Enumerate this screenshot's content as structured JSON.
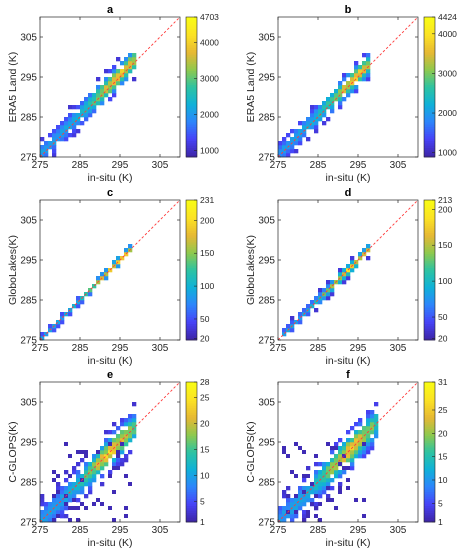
{
  "chart_data": [
    {
      "type": "heatmap",
      "title": "a",
      "xlabel": "in-situ (K)",
      "ylabel": "ERA5 Land (K)",
      "xlim": [
        275,
        310
      ],
      "ylim": [
        275,
        310
      ],
      "xticks": [
        "275",
        "285",
        "295",
        "305"
      ],
      "yticks": [
        "275",
        "285",
        "295",
        "305"
      ],
      "colorbar": {
        "ticks": [
          "1000",
          "2000",
          "3000",
          "4000",
          "4703"
        ],
        "tick_values": [
          1000,
          2000,
          3000,
          4000,
          4703
        ],
        "min": 820,
        "max": 4703,
        "scale": "linear"
      },
      "density": {
        "slope": 1.0,
        "offset": 0.6,
        "spread": 1.7,
        "xmin": 275.5,
        "xmax": 298.5,
        "peak_x": 294.5
      },
      "reference_line": "1:1 dashed red"
    },
    {
      "type": "heatmap",
      "title": "b",
      "xlabel": "in-situ (K)",
      "ylabel": "ERA5 Land (K)",
      "xlim": [
        275,
        310
      ],
      "ylim": [
        275,
        310
      ],
      "xticks": [
        "275",
        "285",
        "295",
        "305"
      ],
      "yticks": [
        "275",
        "285",
        "295",
        "305"
      ],
      "colorbar": {
        "ticks": [
          "1000",
          "2000",
          "3000",
          "4000",
          "4424"
        ],
        "tick_values": [
          1000,
          2000,
          3000,
          4000,
          4424
        ],
        "min": 890,
        "max": 4424,
        "scale": "linear"
      },
      "density": {
        "slope": 1.0,
        "offset": 0.5,
        "spread": 1.6,
        "xmin": 275.5,
        "xmax": 298.0,
        "peak_x": 294.0
      },
      "reference_line": "1:1 dashed red"
    },
    {
      "type": "heatmap",
      "title": "c",
      "xlabel": "in-situ (K)",
      "ylabel": "GloboLakes(K)",
      "xlim": [
        275,
        310
      ],
      "ylim": [
        275,
        310
      ],
      "xticks": [
        "275",
        "285",
        "295",
        "305"
      ],
      "yticks": [
        "275",
        "285",
        "295",
        "305"
      ],
      "colorbar": {
        "ticks": [
          "20",
          "50",
          "100",
          "150",
          "200",
          "231"
        ],
        "tick_values": [
          20,
          50,
          100,
          150,
          200,
          231
        ],
        "min": 18,
        "max": 231,
        "scale": "linear"
      },
      "density": {
        "slope": 1.0,
        "offset": 0.0,
        "spread": 0.7,
        "xmin": 275.5,
        "xmax": 298.0,
        "peak_x": 294.0
      },
      "reference_line": "1:1 dashed red"
    },
    {
      "type": "heatmap",
      "title": "d",
      "xlabel": "in-situ (K)",
      "ylabel": "GloboLakes(K)",
      "xlim": [
        275,
        310
      ],
      "ylim": [
        275,
        310
      ],
      "xticks": [
        "275",
        "285",
        "295",
        "305"
      ],
      "yticks": [
        "275",
        "285",
        "295",
        "305"
      ],
      "colorbar": {
        "ticks": [
          "20",
          "50",
          "100",
          "150",
          "200",
          "213"
        ],
        "tick_values": [
          20,
          50,
          100,
          150,
          200,
          213
        ],
        "min": 18,
        "max": 213,
        "scale": "linear"
      },
      "density": {
        "slope": 1.0,
        "offset": 0.0,
        "spread": 0.8,
        "xmin": 276.0,
        "xmax": 297.5,
        "peak_x": 293.0
      },
      "reference_line": "1:1 dashed red"
    },
    {
      "type": "heatmap",
      "title": "e",
      "xlabel": "in-situ (K)",
      "ylabel": "C-GLOPS(K)",
      "xlim": [
        275,
        310
      ],
      "ylim": [
        275,
        310
      ],
      "xticks": [
        "275",
        "285",
        "295",
        "305"
      ],
      "yticks": [
        "275",
        "285",
        "295",
        "305"
      ],
      "colorbar": {
        "ticks": [
          "1",
          "5",
          "10",
          "15",
          "20",
          "25",
          "28"
        ],
        "tick_values": [
          1,
          5,
          10,
          15,
          20,
          25,
          28
        ],
        "min": 1,
        "max": 28,
        "scale": "linear"
      },
      "density": {
        "slope": 1.0,
        "offset": 0.0,
        "spread": 2.2,
        "xmin": 275.5,
        "xmax": 299.0,
        "peak_x": 293.0
      },
      "reference_line": "1:1 dashed red"
    },
    {
      "type": "heatmap",
      "title": "f",
      "xlabel": "in-situ (K)",
      "ylabel": "C-GLOPS(K)",
      "xlim": [
        275,
        310
      ],
      "ylim": [
        275,
        310
      ],
      "xticks": [
        "275",
        "285",
        "295",
        "305"
      ],
      "yticks": [
        "275",
        "285",
        "295",
        "305"
      ],
      "colorbar": {
        "ticks": [
          "1",
          "5",
          "10",
          "15",
          "20",
          "25",
          "31"
        ],
        "tick_values": [
          1,
          5,
          10,
          15,
          20,
          25,
          31
        ],
        "min": 1,
        "max": 31,
        "scale": "linear"
      },
      "density": {
        "slope": 1.0,
        "offset": 0.0,
        "spread": 2.4,
        "xmin": 275.5,
        "xmax": 300.0,
        "peak_x": 293.0
      },
      "reference_line": "1:1 dashed red"
    }
  ],
  "colors": {
    "reference_line": "#ff3b3b",
    "colormap": [
      "#3e26a8",
      "#4743f8",
      "#2d86fb",
      "#10b1d8",
      "#2dc3a2",
      "#8ec94e",
      "#e6b834",
      "#fbe125",
      "#f9fb15"
    ]
  }
}
